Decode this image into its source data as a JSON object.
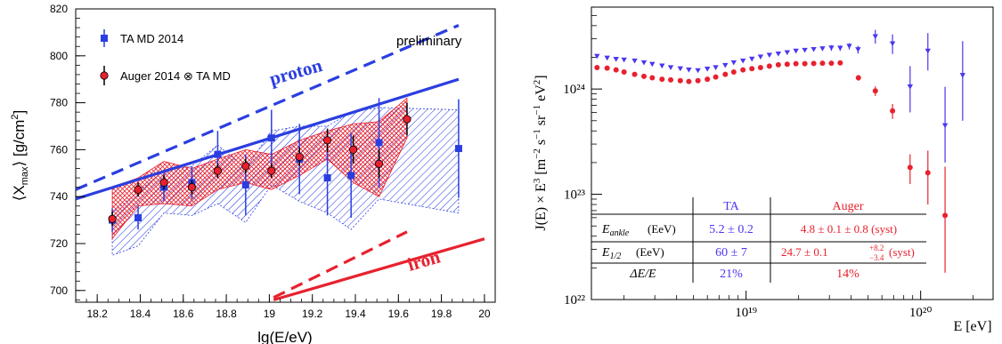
{
  "chart_data": [
    {
      "type": "scatter",
      "xlabel": "lg(E/eV)",
      "ylabel": "⟨X_max⟩ [g/cm²]",
      "xlim": [
        18.1,
        20.05
      ],
      "ylim": [
        695,
        820
      ],
      "xticks": [
        "18.2",
        "18.4",
        "18.6",
        "18.8",
        "19",
        "19.2",
        "19.4",
        "19.6",
        "19.8",
        "20"
      ],
      "yticks": [
        "700",
        "720",
        "740",
        "760",
        "780",
        "800",
        "820"
      ],
      "legend": [
        "TA MD 2014",
        "Auger 2014 ⊗ TA MD"
      ],
      "legend_position": "top-left",
      "annotations": {
        "preliminary": "preliminary",
        "proton": "proton",
        "iron": "iron"
      },
      "series": [
        {
          "name": "TA MD 2014",
          "color": "#2a3ee0",
          "marker": "square",
          "x": [
            18.27,
            18.39,
            18.51,
            18.64,
            18.76,
            18.89,
            19.01,
            19.14,
            19.27,
            19.38,
            19.51,
            19.88
          ],
          "y": [
            730,
            731,
            744,
            746,
            758,
            745,
            765,
            756,
            748,
            749,
            763,
            760.5
          ],
          "err": [
            5,
            5,
            6,
            7,
            10,
            13,
            12,
            15,
            16,
            18,
            19,
            21
          ]
        },
        {
          "name": "Auger 2014 ⊗ TA MD",
          "color": "#e8212e",
          "marker": "circle",
          "x": [
            18.27,
            18.39,
            18.51,
            18.64,
            18.76,
            18.89,
            19.01,
            19.14,
            19.27,
            19.39,
            19.51,
            19.64
          ],
          "y": [
            730.5,
            743,
            746,
            744,
            751,
            753,
            751,
            757,
            764,
            760,
            754,
            773
          ],
          "err": [
            3,
            3,
            3,
            3,
            3,
            3,
            3,
            4,
            5,
            6,
            6,
            7
          ]
        }
      ],
      "model_lines": [
        {
          "name": "proton",
          "color": "#2a3ee0",
          "style": "solid",
          "x": [
            18.1,
            19.88
          ],
          "y": [
            739,
            790
          ]
        },
        {
          "name": "proton",
          "color": "#2a3ee0",
          "style": "dashed",
          "x": [
            18.1,
            19.88
          ],
          "y": [
            743,
            813
          ]
        },
        {
          "name": "iron",
          "color": "#e8212e",
          "style": "solid",
          "x": [
            19.02,
            20.0
          ],
          "y": [
            696,
            722
          ]
        },
        {
          "name": "iron",
          "color": "#e8212e",
          "style": "dashed",
          "x": [
            19.02,
            19.64
          ],
          "y": [
            697,
            725
          ]
        }
      ],
      "bands": [
        {
          "color": "#2a3ee0",
          "x": [
            18.27,
            18.39,
            18.51,
            18.64,
            18.76,
            18.89,
            19.01,
            19.14,
            19.27,
            19.38,
            19.51,
            19.88
          ],
          "upper": [
            733,
            742,
            751,
            753,
            762,
            752,
            768,
            770,
            770,
            776,
            778,
            777
          ],
          "lower": [
            715,
            719,
            733,
            732,
            737,
            729,
            745,
            738,
            733,
            726,
            739,
            733
          ]
        },
        {
          "color": "#e8212e",
          "x": [
            18.27,
            18.39,
            18.51,
            18.64,
            18.76,
            18.89,
            19.01,
            19.14,
            19.27,
            19.39,
            19.51,
            19.64
          ],
          "upper": [
            744,
            748,
            755,
            752,
            756,
            760,
            758,
            764,
            768,
            771,
            772,
            782
          ],
          "lower": [
            722,
            736,
            737,
            736,
            743,
            746,
            743,
            749,
            756,
            746,
            740,
            765
          ]
        }
      ]
    },
    {
      "type": "scatter",
      "xlabel": "E [eV]",
      "ylabel": "J(E) × E³ [m⁻² s⁻¹ sr⁻¹ eV²]",
      "xscale": "log",
      "yscale": "log",
      "xlim": [
        1.3e+18,
        2.6e+20
      ],
      "ylim": [
        1e+22,
        6e+24
      ],
      "xticks": [
        "10¹⁹",
        "10²⁰"
      ],
      "yticks": [
        "10²²",
        "10²³",
        "10²⁴"
      ],
      "series": [
        {
          "name": "TA",
          "color": "#4a36f0",
          "marker": "triangle-down",
          "x": [
            1.4e+18,
            1.6e+18,
            1.8e+18,
            2e+18,
            2.3e+18,
            2.6e+18,
            2.9e+18,
            3.3e+18,
            3.7e+18,
            4.2e+18,
            4.7e+18,
            5.3e+18,
            6e+18,
            6.7e+18,
            7.6e+18,
            8.5e+18,
            9.6e+18,
            1.08e+19,
            1.21e+19,
            1.36e+19,
            1.53e+19,
            1.72e+19,
            1.93e+19,
            2.17e+19,
            2.44e+19,
            2.74e+19,
            3.08e+19,
            3.46e+19,
            3.9e+19,
            4.38e+19,
            5.5e+19,
            6.9e+19,
            8.7e+19,
            1.1e+20,
            1.38e+20,
            1.74e+20
          ],
          "y": [
            2.05e+24,
            1.97e+24,
            1.92e+24,
            1.89e+24,
            1.85e+24,
            1.78e+24,
            1.72e+24,
            1.66e+24,
            1.6e+24,
            1.56e+24,
            1.52e+24,
            1.5e+24,
            1.55e+24,
            1.6e+24,
            1.68e+24,
            1.78e+24,
            1.85e+24,
            1.93e+24,
            2.02e+24,
            2.1e+24,
            2.16e+24,
            2.22e+24,
            2.3e+24,
            2.34e+24,
            2.38e+24,
            2.42e+24,
            2.46e+24,
            2.45e+24,
            2.55e+24,
            2.37e+24,
            3.15e+24,
            2.7e+24,
            1.05e+24,
            2.3e+24,
            4.5e+23,
            1.35e+24
          ],
          "err_hi": [
            0,
            0,
            0,
            0,
            0,
            0,
            0,
            0,
            0,
            0,
            0,
            0,
            0,
            0,
            0,
            0,
            0,
            0,
            0,
            0,
            0,
            0,
            0,
            0,
            0,
            0,
            1.5e+23,
            1.5e+23,
            1.8e+23,
            2e+23,
            5e+23,
            6e+23,
            6e+23,
            1.1e+24,
            6e+23,
            1.5e+24
          ],
          "err_lo": [
            0,
            0,
            0,
            0,
            0,
            0,
            0,
            0,
            0,
            0,
            0,
            0,
            0,
            0,
            0,
            0,
            0,
            0,
            0,
            0,
            0,
            0,
            0,
            0,
            0,
            0,
            1.5e+23,
            1.5e+23,
            1.8e+23,
            2e+23,
            4.5e+23,
            5.5e+23,
            4.5e+23,
            8e+23,
            2.5e+23,
            8.5e+23
          ]
        },
        {
          "name": "Auger",
          "color": "#e8212e",
          "marker": "circle",
          "x": [
            1.4e+18,
            1.6e+18,
            1.8e+18,
            2e+18,
            2.3e+18,
            2.6e+18,
            2.9e+18,
            3.3e+18,
            3.7e+18,
            4.2e+18,
            4.7e+18,
            5.3e+18,
            6e+18,
            6.7e+18,
            7.6e+18,
            8.5e+18,
            9.6e+18,
            1.08e+19,
            1.21e+19,
            1.36e+19,
            1.53e+19,
            1.72e+19,
            1.93e+19,
            2.17e+19,
            2.44e+19,
            2.74e+19,
            3.08e+19,
            3.46e+19,
            4.4e+19,
            5.5e+19,
            6.9e+19,
            8.7e+19,
            1.1e+20,
            1.38e+20
          ],
          "y": [
            1.6e+24,
            1.58e+24,
            1.52e+24,
            1.45e+24,
            1.38e+24,
            1.32e+24,
            1.28e+24,
            1.24e+24,
            1.22e+24,
            1.2e+24,
            1.18e+24,
            1.2e+24,
            1.24e+24,
            1.3e+24,
            1.38e+24,
            1.45e+24,
            1.52e+24,
            1.56e+24,
            1.6e+24,
            1.65e+24,
            1.7e+24,
            1.72e+24,
            1.74e+24,
            1.74e+24,
            1.75e+24,
            1.76e+24,
            1.76e+24,
            1.77e+24,
            1.28e+24,
            9.6e+23,
            6.2e+23,
            1.8e+23,
            1.6e+23,
            6.3e+22
          ],
          "err_hi": [
            0,
            0,
            0,
            0,
            0,
            0,
            0,
            0,
            0,
            0,
            0,
            0,
            0,
            0,
            0,
            0,
            0,
            0,
            0,
            0,
            0,
            0,
            0,
            0,
            0,
            0,
            0,
            0,
            8e+22,
            1e+23,
            1e+23,
            6e+22,
            1e+23,
            1.2e+23
          ],
          "err_lo": [
            0,
            0,
            0,
            0,
            0,
            0,
            0,
            0,
            0,
            0,
            0,
            0,
            0,
            0,
            0,
            0,
            0,
            0,
            0,
            0,
            0,
            0,
            0,
            0,
            0,
            0,
            0,
            0,
            8e+22,
            1e+23,
            1e+23,
            5.5e+22,
            8e+22,
            4.5e+22
          ]
        }
      ],
      "table": {
        "headers": [
          "",
          "TA",
          "Auger"
        ],
        "rows": [
          {
            "label": "E_ankle",
            "unit": "(EeV)",
            "ta": "5.2 ± 0.2",
            "auger": "4.8 ± 0.1 ± 0.8 (syst)"
          },
          {
            "label": "E_1/2",
            "unit": "(EeV)",
            "ta": "60 ± 7",
            "auger": "24.7 ± 0.1",
            "auger_sup": "+8.2",
            "auger_sub": "−3.4",
            "auger_tail": "(syst)"
          },
          {
            "label": "ΔE/E",
            "unit": "",
            "ta": "21%",
            "auger": "14%"
          }
        ]
      }
    }
  ]
}
